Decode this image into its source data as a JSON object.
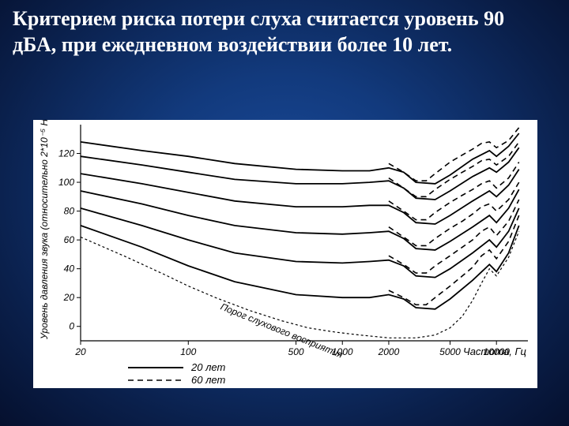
{
  "title_text": "Критерием риска потери слуха считается уровень 90 дБА, при ежедневном воздействии более 10 лет.",
  "title_fontsize": 26,
  "title_color": "#ffffff",
  "chart": {
    "type": "line",
    "background_color": "#ffffff",
    "stroke_color": "#000000",
    "line_width_solid": 1.8,
    "line_width_dash": 1.6,
    "dash_pattern": "7 5",
    "threshold_dash": "3 3",
    "x_axis": {
      "label": "Частота,  Гц",
      "scale": "log",
      "min": 20,
      "max": 16000,
      "ticks": [
        20,
        100,
        500,
        1000,
        2000,
        5000,
        10000
      ],
      "label_fontsize": 13,
      "tick_fontsize": 12
    },
    "y_axis": {
      "label": "Уровень давления звука (относительно 2*10⁻⁵ Н/м²), дБ",
      "min": -10,
      "max": 140,
      "ticks": [
        0,
        20,
        40,
        60,
        80,
        100,
        120
      ],
      "label_fontsize": 12,
      "tick_fontsize": 12
    },
    "legend": {
      "items": [
        {
          "label": "20  лет",
          "style": "solid"
        },
        {
          "label": "60  лет",
          "style": "dash"
        }
      ],
      "fontsize": 13
    },
    "threshold_label": "Порог  слухового  восприятия",
    "threshold_fontsize": 12,
    "series": [
      {
        "style": "solid",
        "pts": [
          [
            20,
            128
          ],
          [
            50,
            122
          ],
          [
            100,
            118
          ],
          [
            200,
            113
          ],
          [
            500,
            109
          ],
          [
            1000,
            108
          ],
          [
            1500,
            108
          ],
          [
            2000,
            110
          ],
          [
            2500,
            107
          ],
          [
            3000,
            100
          ],
          [
            4000,
            99
          ],
          [
            5000,
            105
          ],
          [
            7000,
            116
          ],
          [
            9000,
            122
          ],
          [
            10000,
            118
          ],
          [
            12000,
            125
          ],
          [
            14000,
            134
          ]
        ]
      },
      {
        "style": "solid",
        "pts": [
          [
            20,
            118
          ],
          [
            50,
            112
          ],
          [
            100,
            107
          ],
          [
            200,
            102
          ],
          [
            500,
            99
          ],
          [
            1000,
            99
          ],
          [
            1500,
            100
          ],
          [
            2000,
            101
          ],
          [
            2500,
            96
          ],
          [
            3000,
            89
          ],
          [
            4000,
            88
          ],
          [
            5000,
            94
          ],
          [
            7000,
            104
          ],
          [
            9000,
            110
          ],
          [
            10000,
            107
          ],
          [
            12000,
            114
          ],
          [
            14000,
            124
          ]
        ]
      },
      {
        "style": "solid",
        "pts": [
          [
            20,
            106
          ],
          [
            50,
            99
          ],
          [
            100,
            93
          ],
          [
            200,
            87
          ],
          [
            500,
            83
          ],
          [
            1000,
            83
          ],
          [
            1500,
            84
          ],
          [
            2000,
            84
          ],
          [
            2500,
            79
          ],
          [
            3000,
            72
          ],
          [
            4000,
            71
          ],
          [
            5000,
            77
          ],
          [
            7000,
            87
          ],
          [
            9000,
            94
          ],
          [
            10000,
            90
          ],
          [
            12000,
            98
          ],
          [
            14000,
            109
          ]
        ]
      },
      {
        "style": "solid",
        "pts": [
          [
            20,
            94
          ],
          [
            50,
            85
          ],
          [
            100,
            77
          ],
          [
            200,
            70
          ],
          [
            500,
            65
          ],
          [
            1000,
            64
          ],
          [
            1500,
            65
          ],
          [
            2000,
            66
          ],
          [
            2500,
            61
          ],
          [
            3000,
            54
          ],
          [
            4000,
            53
          ],
          [
            5000,
            59
          ],
          [
            7000,
            69
          ],
          [
            9000,
            77
          ],
          [
            10000,
            72
          ],
          [
            12000,
            82
          ],
          [
            14000,
            95
          ]
        ]
      },
      {
        "style": "solid",
        "pts": [
          [
            20,
            82
          ],
          [
            50,
            70
          ],
          [
            100,
            60
          ],
          [
            200,
            51
          ],
          [
            500,
            45
          ],
          [
            1000,
            44
          ],
          [
            1500,
            45
          ],
          [
            2000,
            46
          ],
          [
            2500,
            42
          ],
          [
            3000,
            35
          ],
          [
            4000,
            34
          ],
          [
            5000,
            40
          ],
          [
            7000,
            51
          ],
          [
            9000,
            60
          ],
          [
            10000,
            55
          ],
          [
            12000,
            66
          ],
          [
            14000,
            82
          ]
        ]
      },
      {
        "style": "solid",
        "pts": [
          [
            20,
            70
          ],
          [
            50,
            55
          ],
          [
            100,
            42
          ],
          [
            200,
            31
          ],
          [
            500,
            22
          ],
          [
            1000,
            20
          ],
          [
            1500,
            20
          ],
          [
            2000,
            22
          ],
          [
            2500,
            19
          ],
          [
            3000,
            13
          ],
          [
            4000,
            12
          ],
          [
            5000,
            19
          ],
          [
            7000,
            32
          ],
          [
            9000,
            43
          ],
          [
            10000,
            38
          ],
          [
            12000,
            51
          ],
          [
            14000,
            70
          ]
        ]
      },
      {
        "style": "dash",
        "pts": [
          [
            2000,
            113
          ],
          [
            2500,
            107
          ],
          [
            3000,
            101
          ],
          [
            3500,
            101
          ],
          [
            4000,
            106
          ],
          [
            5000,
            114
          ],
          [
            6000,
            119
          ],
          [
            7000,
            123
          ],
          [
            8000,
            127
          ],
          [
            9000,
            128
          ],
          [
            10000,
            124
          ],
          [
            12000,
            129
          ],
          [
            14000,
            138
          ]
        ]
      },
      {
        "style": "dash",
        "pts": [
          [
            2000,
            103
          ],
          [
            2500,
            96
          ],
          [
            3000,
            90
          ],
          [
            3500,
            90
          ],
          [
            4000,
            95
          ],
          [
            5000,
            102
          ],
          [
            6000,
            107
          ],
          [
            7000,
            111
          ],
          [
            8000,
            115
          ],
          [
            9000,
            116
          ],
          [
            10000,
            112
          ],
          [
            12000,
            118
          ],
          [
            14000,
            128
          ]
        ]
      },
      {
        "style": "dash",
        "pts": [
          [
            2000,
            87
          ],
          [
            2500,
            80
          ],
          [
            3000,
            74
          ],
          [
            3500,
            74
          ],
          [
            4000,
            79
          ],
          [
            5000,
            86
          ],
          [
            6000,
            91
          ],
          [
            7000,
            95
          ],
          [
            8000,
            99
          ],
          [
            9000,
            101
          ],
          [
            10000,
            96
          ],
          [
            12000,
            103
          ],
          [
            14000,
            114
          ]
        ]
      },
      {
        "style": "dash",
        "pts": [
          [
            2000,
            69
          ],
          [
            2500,
            62
          ],
          [
            3000,
            56
          ],
          [
            3500,
            56
          ],
          [
            4000,
            61
          ],
          [
            5000,
            68
          ],
          [
            6000,
            73
          ],
          [
            7000,
            78
          ],
          [
            8000,
            83
          ],
          [
            9000,
            85
          ],
          [
            10000,
            80
          ],
          [
            12000,
            88
          ],
          [
            14000,
            100
          ]
        ]
      },
      {
        "style": "dash",
        "pts": [
          [
            2000,
            49
          ],
          [
            2500,
            43
          ],
          [
            3000,
            37
          ],
          [
            3500,
            37
          ],
          [
            4000,
            42
          ],
          [
            5000,
            49
          ],
          [
            6000,
            55
          ],
          [
            7000,
            60
          ],
          [
            8000,
            66
          ],
          [
            9000,
            69
          ],
          [
            10000,
            63
          ],
          [
            12000,
            73
          ],
          [
            14000,
            88
          ]
        ]
      },
      {
        "style": "dash",
        "pts": [
          [
            2000,
            25
          ],
          [
            2500,
            20
          ],
          [
            3000,
            15
          ],
          [
            3500,
            15
          ],
          [
            4000,
            20
          ],
          [
            5000,
            28
          ],
          [
            6000,
            35
          ],
          [
            7000,
            41
          ],
          [
            8000,
            49
          ],
          [
            9000,
            53
          ],
          [
            10000,
            47
          ],
          [
            12000,
            59
          ],
          [
            14000,
            77
          ]
        ]
      },
      {
        "style": "threshold",
        "pts": [
          [
            20,
            62
          ],
          [
            40,
            48
          ],
          [
            70,
            36
          ],
          [
            100,
            28
          ],
          [
            150,
            20
          ],
          [
            250,
            11
          ],
          [
            400,
            4
          ],
          [
            600,
            -1
          ],
          [
            900,
            -4
          ],
          [
            1300,
            -6
          ],
          [
            2000,
            -8
          ],
          [
            3000,
            -8
          ],
          [
            4000,
            -6
          ],
          [
            5000,
            -1
          ],
          [
            6000,
            7
          ],
          [
            7000,
            18
          ],
          [
            8000,
            30
          ],
          [
            9000,
            40
          ],
          [
            10000,
            35
          ],
          [
            12000,
            48
          ],
          [
            14000,
            66
          ]
        ]
      }
    ]
  }
}
